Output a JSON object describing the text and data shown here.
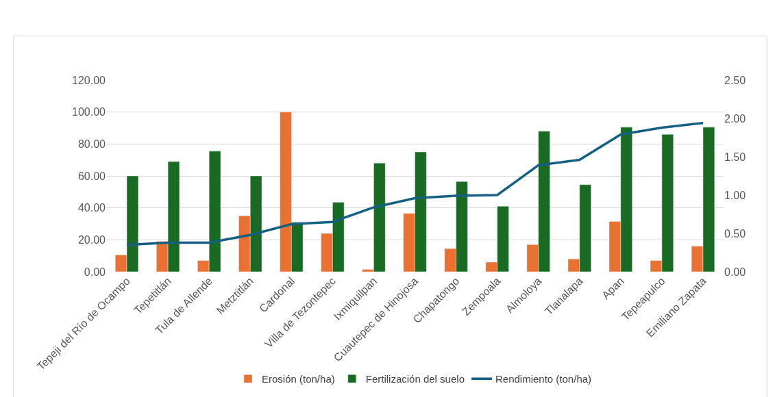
{
  "chart_data": {
    "type": "bar",
    "categories": [
      "Tepeji del Río de Ocampo",
      "Tepetitlán",
      "Tula de Allende",
      "Metztitlán",
      "Cardonal",
      "Villa de Tezontepec",
      "Ixmiquilpan",
      "Cuautepec de Hinojosa",
      "Chapatongo",
      "Zempoala",
      "Almoloya",
      "Tlanalapa",
      "Apan",
      "Tepeapulco",
      "Emiliano Zapata"
    ],
    "series": [
      {
        "name": "Erosión (ton/ha)",
        "color": "#e97132",
        "values": [
          10.5,
          19,
          7,
          35,
          100,
          24,
          1.5,
          36.5,
          14.5,
          6,
          17,
          8,
          31.5,
          7,
          16
        ]
      },
      {
        "name": "Fertilización del suelo",
        "color": "#196b24",
        "values": [
          60,
          69,
          75.5,
          60,
          31,
          43.5,
          68,
          75,
          56.5,
          41,
          88,
          54.5,
          90.5,
          86,
          90.5
        ]
      },
      {
        "name": "Rendimiento (ton/ha)",
        "color": "#156082",
        "type": "line",
        "axis": "y2",
        "values": [
          0.35,
          0.38,
          0.38,
          0.48,
          0.62,
          0.65,
          0.84,
          0.96,
          0.99,
          1.0,
          1.39,
          1.46,
          1.79,
          1.88,
          1.94
        ]
      }
    ],
    "ylim": [
      0,
      120
    ],
    "yticks": [
      {
        "value": 0,
        "label": "0.00"
      },
      {
        "value": 20,
        "label": "20.00"
      },
      {
        "value": 40,
        "label": "40.00"
      },
      {
        "value": 60,
        "label": "60.00"
      },
      {
        "value": 80,
        "label": "80.00"
      },
      {
        "value": 100,
        "label": "100.00"
      },
      {
        "value": 120,
        "label": "120.00"
      }
    ],
    "y2lim": [
      0,
      2.5
    ],
    "y2ticks": [
      {
        "value": 0,
        "label": "0.00"
      },
      {
        "value": 0.5,
        "label": "0.50"
      },
      {
        "value": 1,
        "label": "1.00"
      },
      {
        "value": 1.5,
        "label": "1.50"
      },
      {
        "value": 2,
        "label": "2.00"
      },
      {
        "value": 2.5,
        "label": "2.50"
      }
    ],
    "grid": "y",
    "legend": "bottom",
    "marker": "none",
    "line_style": "solid"
  }
}
